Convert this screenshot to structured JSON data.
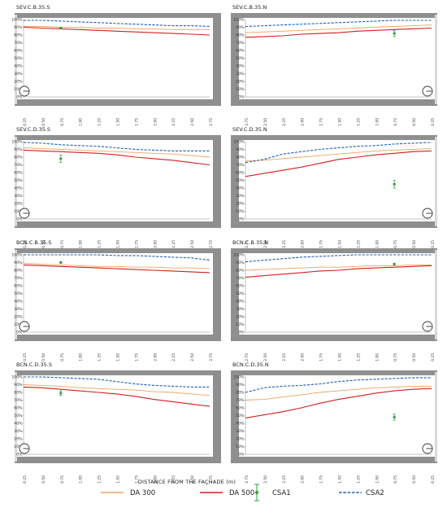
{
  "figure": {
    "xlabel": "DISTANCE FROM THE FAÇHADE (m)",
    "y_ticks": [
      "0%",
      "10%",
      "20%",
      "30%",
      "40%",
      "50%",
      "60%",
      "70%",
      "80%",
      "90%",
      "100%"
    ],
    "x_ticks_south": [
      "0.25",
      "0.50",
      "0.75",
      "1.00",
      "1.25",
      "1.50",
      "1.75",
      "2.00",
      "2.25",
      "2.50",
      "2.75"
    ],
    "x_ticks_north": [
      "2.75",
      "2.50",
      "2.25",
      "2.00",
      "1.75",
      "1.50",
      "1.25",
      "1.00",
      "0.75",
      "0.50",
      "0.25"
    ],
    "legend": [
      {
        "key": "da300",
        "label": "DA 300",
        "color": "#f0a35e",
        "style": "solid"
      },
      {
        "key": "da500",
        "label": "DA 500",
        "color": "#d41f1f",
        "style": "solid"
      },
      {
        "key": "csa1",
        "label": "CSA1",
        "color": "#3aa84a",
        "style": "marker"
      },
      {
        "key": "csa2",
        "label": "CSA2",
        "color": "#1f5fb4",
        "style": "dashed"
      }
    ]
  },
  "chart_data": [
    {
      "type": "line",
      "title": "SEV.C.B.35.S",
      "orientation": "S",
      "x": [
        0.25,
        0.5,
        0.75,
        1.0,
        1.25,
        1.5,
        1.75,
        2.0,
        2.25,
        2.5,
        2.75
      ],
      "ylim": [
        0,
        100
      ],
      "series": [
        {
          "name": "DA 300",
          "key": "da300",
          "values": [
            91,
            91,
            90,
            90,
            89,
            89,
            88,
            88,
            87,
            87,
            87
          ]
        },
        {
          "name": "DA 500",
          "key": "da500",
          "values": [
            90,
            89,
            88,
            87,
            86,
            85,
            84,
            83,
            82,
            81,
            80
          ]
        },
        {
          "name": "CSA2",
          "key": "csa2",
          "values": [
            99,
            99,
            98,
            97,
            96,
            95,
            94,
            93,
            92,
            92,
            91
          ]
        }
      ],
      "csa1": {
        "x": 0.75,
        "value": 89,
        "error": 1
      }
    },
    {
      "type": "line",
      "title": "SEV.C.B.35.N",
      "orientation": "N",
      "x": [
        2.75,
        2.5,
        2.25,
        2.0,
        1.75,
        1.5,
        1.25,
        1.0,
        0.75,
        0.5,
        0.25
      ],
      "ylim": [
        0,
        100
      ],
      "series": [
        {
          "name": "DA 300",
          "key": "da300",
          "values": [
            83,
            84,
            85,
            86,
            87,
            88,
            89,
            90,
            91,
            92,
            93
          ]
        },
        {
          "name": "DA 500",
          "key": "da500",
          "values": [
            77,
            78,
            79,
            81,
            82,
            83,
            85,
            86,
            87,
            88,
            89
          ]
        },
        {
          "name": "CSA2",
          "key": "csa2",
          "values": [
            91,
            92,
            93,
            94,
            95,
            96,
            97,
            98,
            99,
            99,
            99
          ]
        }
      ],
      "csa1": {
        "x": 0.75,
        "value": 82,
        "error": 4
      }
    },
    {
      "type": "line",
      "title": "SEV.C.D.35.S",
      "orientation": "S",
      "x": [
        0.25,
        0.5,
        0.75,
        1.0,
        1.25,
        1.5,
        1.75,
        2.0,
        2.25,
        2.5,
        2.75
      ],
      "ylim": [
        0,
        100
      ],
      "series": [
        {
          "name": "DA 300",
          "key": "da300",
          "values": [
            92,
            91,
            90,
            89,
            88,
            87,
            86,
            85,
            84,
            82,
            80
          ]
        },
        {
          "name": "DA 500",
          "key": "da500",
          "values": [
            89,
            88,
            87,
            86,
            85,
            83,
            80,
            78,
            76,
            73,
            70
          ]
        },
        {
          "name": "CSA2",
          "key": "csa2",
          "values": [
            99,
            98,
            96,
            95,
            94,
            92,
            90,
            89,
            88,
            88,
            88
          ]
        }
      ],
      "csa1": {
        "x": 0.75,
        "value": 78,
        "error": 5
      }
    },
    {
      "type": "line",
      "title": "SEV.C.D.35.N",
      "orientation": "N",
      "x": [
        2.75,
        2.5,
        2.25,
        2.0,
        1.75,
        1.5,
        1.25,
        1.0,
        0.75,
        0.5,
        0.25
      ],
      "ylim": [
        0,
        100
      ],
      "series": [
        {
          "name": "DA 300",
          "key": "da300",
          "values": [
            75,
            76,
            78,
            80,
            82,
            84,
            86,
            88,
            89,
            90,
            91
          ]
        },
        {
          "name": "DA 500",
          "key": "da500",
          "values": [
            55,
            59,
            63,
            67,
            72,
            77,
            80,
            83,
            85,
            87,
            88
          ]
        },
        {
          "name": "CSA2",
          "key": "csa2",
          "values": [
            73,
            77,
            84,
            87,
            90,
            92,
            94,
            95,
            97,
            98,
            99
          ]
        }
      ],
      "csa1": {
        "x": 0.75,
        "value": 45,
        "error": 5
      }
    },
    {
      "type": "line",
      "title": "BCN.C.B.35.S",
      "orientation": "S",
      "x": [
        0.25,
        0.5,
        0.75,
        1.0,
        1.25,
        1.5,
        1.75,
        2.0,
        2.25,
        2.5,
        2.75
      ],
      "ylim": [
        0,
        100
      ],
      "series": [
        {
          "name": "DA 300",
          "key": "da300",
          "values": [
            89,
            88,
            87,
            86,
            85,
            85,
            84,
            84,
            83,
            83,
            82
          ]
        },
        {
          "name": "DA 500",
          "key": "da500",
          "values": [
            87,
            86,
            85,
            84,
            83,
            82,
            81,
            80,
            79,
            78,
            77
          ]
        },
        {
          "name": "CSA2",
          "key": "csa2",
          "values": [
            100,
            100,
            100,
            100,
            100,
            99,
            99,
            98,
            97,
            96,
            93
          ]
        }
      ],
      "csa1": {
        "x": 0.75,
        "value": 90,
        "error": 1
      }
    },
    {
      "type": "line",
      "title": "BCN.C.B.35.N",
      "orientation": "N",
      "x": [
        2.75,
        2.5,
        2.25,
        2.0,
        1.75,
        1.5,
        1.25,
        1.0,
        0.75,
        0.5,
        0.25
      ],
      "ylim": [
        0,
        100
      ],
      "series": [
        {
          "name": "DA 300",
          "key": "da300",
          "values": [
            80,
            81,
            82,
            83,
            84,
            84,
            85,
            86,
            86,
            87,
            87
          ]
        },
        {
          "name": "DA 500",
          "key": "da500",
          "values": [
            71,
            73,
            75,
            77,
            79,
            80,
            82,
            83,
            84,
            85,
            86
          ]
        },
        {
          "name": "CSA2",
          "key": "csa2",
          "values": [
            91,
            93,
            95,
            97,
            98,
            99,
            100,
            100,
            100,
            100,
            100
          ]
        }
      ],
      "csa1": {
        "x": 0.75,
        "value": 88,
        "error": 1
      }
    },
    {
      "type": "line",
      "title": "BCN.C.D.35.S",
      "orientation": "S",
      "x": [
        0.25,
        0.5,
        0.75,
        1.0,
        1.25,
        1.5,
        1.75,
        2.0,
        2.25,
        2.5,
        2.75
      ],
      "ylim": [
        0,
        100
      ],
      "series": [
        {
          "name": "DA 300",
          "key": "da300",
          "values": [
            90,
            89,
            88,
            86,
            85,
            84,
            83,
            81,
            80,
            78,
            76
          ]
        },
        {
          "name": "DA 500",
          "key": "da500",
          "values": [
            87,
            86,
            84,
            82,
            80,
            78,
            75,
            71,
            68,
            65,
            62
          ]
        },
        {
          "name": "CSA2",
          "key": "csa2",
          "values": [
            100,
            100,
            99,
            98,
            97,
            94,
            91,
            89,
            88,
            87,
            87
          ]
        }
      ],
      "csa1": {
        "x": 0.75,
        "value": 79,
        "error": 3
      }
    },
    {
      "type": "line",
      "title": "BCN.C.D.35.N",
      "orientation": "N",
      "x": [
        2.75,
        2.5,
        2.25,
        2.0,
        1.75,
        1.5,
        1.25,
        1.0,
        0.75,
        0.5,
        0.25
      ],
      "ylim": [
        0,
        100
      ],
      "series": [
        {
          "name": "DA 300",
          "key": "da300",
          "values": [
            70,
            71,
            74,
            77,
            80,
            82,
            84,
            86,
            87,
            88,
            88
          ]
        },
        {
          "name": "DA 500",
          "key": "da500",
          "values": [
            47,
            51,
            55,
            60,
            66,
            71,
            75,
            79,
            82,
            84,
            85
          ]
        },
        {
          "name": "CSA2",
          "key": "csa2",
          "values": [
            80,
            86,
            88,
            89,
            91,
            94,
            96,
            97,
            98,
            99,
            99
          ]
        }
      ],
      "csa1": {
        "x": 0.75,
        "value": 48,
        "error": 4
      }
    }
  ]
}
